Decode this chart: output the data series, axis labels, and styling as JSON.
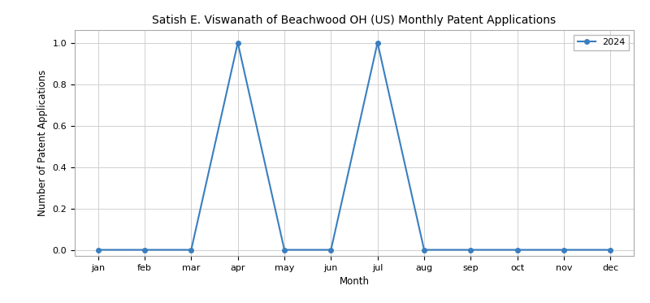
{
  "title": "Satish E. Viswanath of Beachwood OH (US) Monthly Patent Applications",
  "xlabel": "Month",
  "ylabel": "Number of Patent Applications",
  "months": [
    "jan",
    "feb",
    "mar",
    "apr",
    "may",
    "jun",
    "jul",
    "aug",
    "sep",
    "oct",
    "nov",
    "dec"
  ],
  "values_2024": [
    0,
    0,
    0,
    1,
    0,
    0,
    1,
    0,
    0,
    0,
    0,
    0
  ],
  "legend_label": "2024",
  "line_color": "#3a7ebf",
  "marker": "o",
  "ylim": [
    -0.03,
    1.06
  ],
  "yticks": [
    0.0,
    0.2,
    0.4,
    0.6,
    0.8,
    1.0
  ],
  "grid_color": "#d0d0d0",
  "background_color": "#ffffff",
  "title_fontsize": 10,
  "axis_label_fontsize": 8.5,
  "tick_fontsize": 8
}
